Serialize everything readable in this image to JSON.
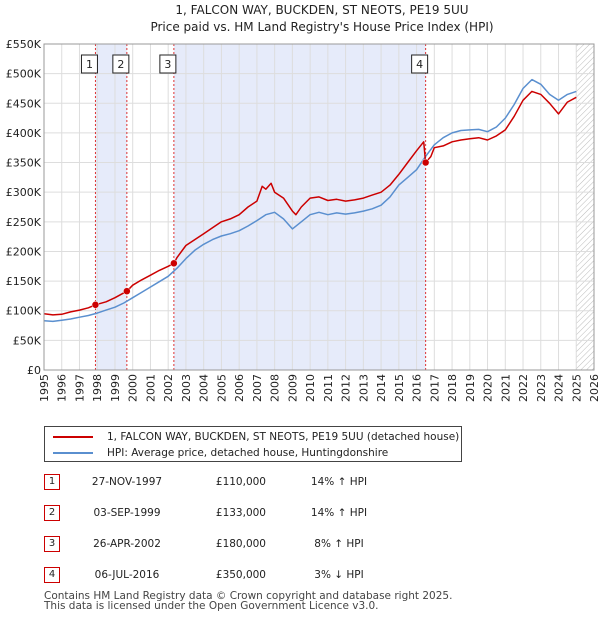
{
  "chart_data": {
    "type": "line",
    "title": "1, FALCON WAY, BUCKDEN, ST NEOTS, PE19 5UU",
    "subtitle": "Price paid vs. HM Land Registry's House Price Index (HPI)",
    "xlim": [
      1995,
      2026
    ],
    "ylim": [
      0,
      550000
    ],
    "y_ticks": [
      0,
      50000,
      100000,
      150000,
      200000,
      250000,
      300000,
      350000,
      400000,
      450000,
      500000,
      550000
    ],
    "y_tick_labels": [
      "£0",
      "£50K",
      "£100K",
      "£150K",
      "£200K",
      "£250K",
      "£300K",
      "£350K",
      "£400K",
      "£450K",
      "£500K",
      "£550K"
    ],
    "x_ticks": [
      1995,
      1996,
      1997,
      1998,
      1999,
      2000,
      2001,
      2002,
      2003,
      2004,
      2005,
      2006,
      2007,
      2008,
      2009,
      2010,
      2011,
      2012,
      2013,
      2014,
      2015,
      2016,
      2017,
      2018,
      2019,
      2020,
      2021,
      2022,
      2023,
      2024,
      2025,
      2026
    ],
    "x_tick_labels": [
      "1995",
      "1996",
      "1997",
      "1998",
      "1999",
      "2000",
      "2001",
      "2002",
      "2003",
      "2004",
      "2005",
      "2006",
      "2007",
      "2008",
      "2009",
      "2010",
      "2011",
      "2012",
      "2013",
      "2014",
      "2015",
      "2016",
      "2017",
      "2018",
      "2019",
      "2020",
      "2021",
      "2022",
      "2023",
      "2024",
      "2025",
      "2026"
    ],
    "grid": true,
    "future_hatch_from": 2025.0,
    "shaded_ranges": [
      [
        1997.9,
        1999.67
      ],
      [
        2002.32,
        2016.51
      ]
    ],
    "series": [
      {
        "name": "1, FALCON WAY, BUCKDEN, ST NEOTS, PE19 5UU (detached house)",
        "color": "#cc0000",
        "x": [
          1995.0,
          1995.5,
          1996.0,
          1996.5,
          1997.0,
          1997.5,
          1997.9,
          1998.5,
          1999.0,
          1999.67,
          2000.0,
          2000.5,
          2001.0,
          2001.5,
          2002.0,
          2002.32,
          2002.5,
          2003.0,
          2003.5,
          2004.0,
          2004.5,
          2005.0,
          2005.5,
          2006.0,
          2006.5,
          2007.0,
          2007.3,
          2007.5,
          2007.8,
          2008.0,
          2008.5,
          2009.0,
          2009.2,
          2009.5,
          2010.0,
          2010.5,
          2011.0,
          2011.5,
          2012.0,
          2012.5,
          2013.0,
          2013.5,
          2014.0,
          2014.5,
          2015.0,
          2015.5,
          2016.0,
          2016.4,
          2016.51,
          2016.8,
          2017.0,
          2017.5,
          2018.0,
          2018.5,
          2019.0,
          2019.5,
          2020.0,
          2020.5,
          2021.0,
          2021.5,
          2022.0,
          2022.5,
          2023.0,
          2023.5,
          2024.0,
          2024.5,
          2025.0
        ],
        "y": [
          95000,
          93000,
          94000,
          98000,
          101000,
          105000,
          110000,
          115000,
          122000,
          133000,
          143000,
          152000,
          160000,
          168000,
          175000,
          180000,
          190000,
          210000,
          220000,
          230000,
          240000,
          250000,
          255000,
          262000,
          275000,
          285000,
          310000,
          305000,
          315000,
          300000,
          290000,
          268000,
          262000,
          275000,
          290000,
          292000,
          286000,
          288000,
          285000,
          287000,
          290000,
          295000,
          300000,
          312000,
          330000,
          350000,
          370000,
          385000,
          350000,
          360000,
          375000,
          378000,
          385000,
          388000,
          390000,
          392000,
          388000,
          395000,
          405000,
          428000,
          455000,
          470000,
          465000,
          450000,
          432000,
          452000,
          460000
        ]
      },
      {
        "name": "HPI: Average price, detached house, Huntingdonshire",
        "color": "#5a8fcf",
        "x": [
          1995.0,
          1995.5,
          1996.0,
          1996.5,
          1997.0,
          1997.5,
          1998.0,
          1998.5,
          1999.0,
          1999.5,
          2000.0,
          2000.5,
          2001.0,
          2001.5,
          2002.0,
          2002.5,
          2003.0,
          2003.5,
          2004.0,
          2004.5,
          2005.0,
          2005.5,
          2006.0,
          2006.5,
          2007.0,
          2007.5,
          2008.0,
          2008.5,
          2009.0,
          2009.5,
          2010.0,
          2010.5,
          2011.0,
          2011.5,
          2012.0,
          2012.5,
          2013.0,
          2013.5,
          2014.0,
          2014.5,
          2015.0,
          2015.5,
          2016.0,
          2016.5,
          2017.0,
          2017.5,
          2018.0,
          2018.5,
          2019.0,
          2019.5,
          2020.0,
          2020.5,
          2021.0,
          2021.5,
          2022.0,
          2022.5,
          2023.0,
          2023.5,
          2024.0,
          2024.5,
          2025.0
        ],
        "y": [
          83000,
          82000,
          84000,
          86000,
          89000,
          92000,
          96000,
          101000,
          106000,
          113000,
          122000,
          131000,
          140000,
          149000,
          158000,
          172000,
          188000,
          202000,
          212000,
          220000,
          226000,
          230000,
          235000,
          243000,
          252000,
          262000,
          266000,
          255000,
          238000,
          250000,
          262000,
          266000,
          262000,
          265000,
          263000,
          265000,
          268000,
          272000,
          278000,
          292000,
          312000,
          325000,
          338000,
          360000,
          380000,
          392000,
          400000,
          404000,
          405000,
          406000,
          402000,
          410000,
          425000,
          448000,
          475000,
          490000,
          482000,
          465000,
          455000,
          465000,
          470000
        ]
      }
    ],
    "sales": [
      {
        "label": "1",
        "x": 1997.9,
        "y": 110000
      },
      {
        "label": "2",
        "x": 1999.67,
        "y": 133000
      },
      {
        "label": "3",
        "x": 2002.32,
        "y": 180000
      },
      {
        "label": "4",
        "x": 2016.51,
        "y": 350000
      }
    ]
  },
  "legend": {
    "property_label": "1, FALCON WAY, BUCKDEN, ST NEOTS, PE19 5UU (detached house)",
    "hpi_label": "HPI: Average price, detached house, Huntingdonshire",
    "property_color": "#cc0000",
    "hpi_color": "#5a8fcf"
  },
  "transactions": [
    {
      "num": "1",
      "date": "27-NOV-1997",
      "price": "£110,000",
      "diff": "14% ↑ HPI"
    },
    {
      "num": "2",
      "date": "03-SEP-1999",
      "price": "£133,000",
      "diff": "14% ↑ HPI"
    },
    {
      "num": "3",
      "date": "26-APR-2002",
      "price": "£180,000",
      "diff": "8% ↑ HPI"
    },
    {
      "num": "4",
      "date": "06-JUL-2016",
      "price": "£350,000",
      "diff": "3% ↓ HPI"
    }
  ],
  "footer": {
    "line1": "Contains HM Land Registry data © Crown copyright and database right 2025.",
    "line2": "This data is licensed under the Open Government Licence v3.0."
  }
}
